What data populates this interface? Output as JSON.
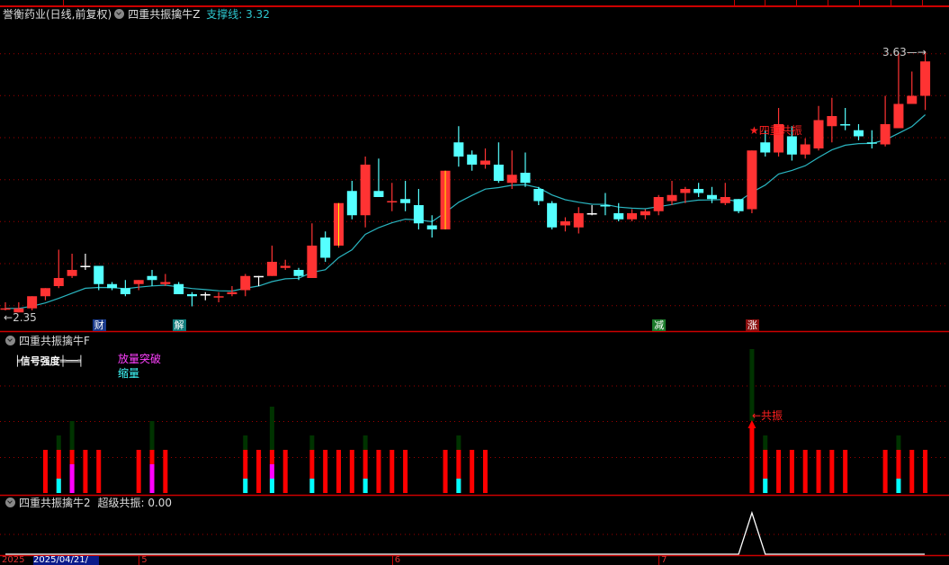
{
  "header": {
    "stock": "誉衡药业(日线,前复权)",
    "indicator": "四重共振擒牛Z",
    "support_label": "支撑线: 3.32"
  },
  "price_labels": {
    "high": "3.63",
    "low": "2.35"
  },
  "signal_text": "★四重共振",
  "badges": [
    {
      "text": "财",
      "candle": 8,
      "bg": "#1a3a8a"
    },
    {
      "text": "解",
      "candle": 14,
      "bg": "#0f7a7a"
    },
    {
      "text": "减",
      "candle": 50,
      "bg": "#1a7a2a"
    },
    {
      "text": "涨",
      "candle": 57,
      "bg": "#8a1010"
    }
  ],
  "colors": {
    "up": "#ff3333",
    "down": "#55ffff",
    "ma": "#2ab5c0",
    "grid": "#a00000",
    "doji": "#ffffff"
  },
  "candles": [
    [
      2.36,
      2.39,
      2.35,
      2.36,
      "r"
    ],
    [
      2.34,
      2.39,
      2.34,
      2.36
    ],
    [
      2.36,
      2.42,
      2.35,
      2.42
    ],
    [
      2.42,
      2.46,
      2.4,
      2.46
    ],
    [
      2.47,
      2.65,
      2.46,
      2.51
    ],
    [
      2.52,
      2.63,
      2.51,
      2.55
    ],
    [
      2.57,
      2.63,
      2.55,
      2.57,
      "w"
    ],
    [
      2.57,
      2.57,
      2.45,
      2.48
    ],
    [
      2.48,
      2.49,
      2.45,
      2.46
    ],
    [
      2.46,
      2.5,
      2.42,
      2.43
    ],
    [
      2.48,
      2.5,
      2.45,
      2.5
    ],
    [
      2.52,
      2.55,
      2.47,
      2.5
    ],
    [
      2.48,
      2.53,
      2.47,
      2.49
    ],
    [
      2.48,
      2.49,
      2.43,
      2.43
    ],
    [
      2.43,
      2.44,
      2.37,
      2.42
    ],
    [
      2.43,
      2.44,
      2.4,
      2.43,
      "w"
    ],
    [
      2.42,
      2.44,
      2.39,
      2.42,
      "r"
    ],
    [
      2.43,
      2.47,
      2.42,
      2.44
    ],
    [
      2.45,
      2.53,
      2.42,
      2.52
    ],
    [
      2.52,
      2.52,
      2.47,
      2.52,
      "w"
    ],
    [
      2.52,
      2.67,
      2.52,
      2.59
    ],
    [
      2.56,
      2.6,
      2.55,
      2.57
    ],
    [
      2.55,
      2.56,
      2.5,
      2.52
    ],
    [
      2.51,
      2.78,
      2.51,
      2.67
    ],
    [
      2.71,
      2.74,
      2.59,
      2.61
    ],
    [
      2.67,
      2.88,
      2.66,
      2.88,
      "y"
    ],
    [
      2.94,
      2.99,
      2.8,
      2.82
    ],
    [
      2.82,
      3.11,
      2.76,
      3.07
    ],
    [
      2.94,
      3.1,
      2.91,
      2.91
    ],
    [
      2.89,
      2.98,
      2.84,
      2.89,
      "r"
    ],
    [
      2.9,
      2.99,
      2.84,
      2.88
    ],
    [
      2.87,
      2.95,
      2.75,
      2.78
    ],
    [
      2.77,
      2.82,
      2.71,
      2.75
    ],
    [
      2.75,
      3.04,
      2.75,
      3.04,
      "y"
    ],
    [
      3.18,
      3.26,
      3.06,
      3.11
    ],
    [
      3.12,
      3.14,
      3.04,
      3.07
    ],
    [
      3.07,
      3.15,
      3.05,
      3.09
    ],
    [
      3.07,
      3.18,
      2.98,
      2.99
    ],
    [
      2.98,
      3.14,
      2.95,
      3.02
    ],
    [
      3.03,
      3.13,
      2.96,
      2.98
    ],
    [
      2.95,
      2.96,
      2.87,
      2.89
    ],
    [
      2.88,
      2.89,
      2.75,
      2.76
    ],
    [
      2.77,
      2.81,
      2.74,
      2.79
    ],
    [
      2.76,
      2.86,
      2.73,
      2.83
    ],
    [
      2.83,
      2.87,
      2.82,
      2.83,
      "w"
    ],
    [
      2.87,
      2.93,
      2.82,
      2.87,
      "c"
    ],
    [
      2.83,
      2.88,
      2.79,
      2.8
    ],
    [
      2.8,
      2.85,
      2.79,
      2.83
    ],
    [
      2.82,
      2.85,
      2.8,
      2.84
    ],
    [
      2.84,
      2.92,
      2.82,
      2.91
    ],
    [
      2.89,
      2.99,
      2.87,
      2.92
    ],
    [
      2.93,
      2.96,
      2.88,
      2.95
    ],
    [
      2.95,
      2.98,
      2.91,
      2.93
    ],
    [
      2.92,
      2.96,
      2.88,
      2.9
    ],
    [
      2.88,
      2.98,
      2.87,
      2.91
    ],
    [
      2.9,
      2.9,
      2.83,
      2.84
    ],
    [
      2.85,
      3.14,
      2.83,
      3.14
    ],
    [
      3.18,
      3.24,
      3.11,
      3.13
    ],
    [
      3.13,
      3.35,
      3.11,
      3.27
    ],
    [
      3.21,
      3.26,
      3.09,
      3.12
    ],
    [
      3.12,
      3.2,
      3.1,
      3.17
    ],
    [
      3.15,
      3.36,
      3.14,
      3.29
    ],
    [
      3.26,
      3.4,
      3.18,
      3.31
    ],
    [
      3.27,
      3.35,
      3.24,
      3.27,
      "c"
    ],
    [
      3.24,
      3.27,
      3.19,
      3.21
    ],
    [
      3.18,
      3.24,
      3.15,
      3.18,
      "c"
    ],
    [
      3.17,
      3.41,
      3.16,
      3.27
    ],
    [
      3.25,
      3.62,
      3.25,
      3.37
    ],
    [
      3.37,
      3.53,
      3.37,
      3.41
    ],
    [
      3.41,
      3.63,
      3.34,
      3.58
    ]
  ],
  "panel_f": {
    "title": "四重共振擒牛F",
    "legend_strength": "╞信号强度╪══╡",
    "legend_breakout": "放量突破",
    "legend_shrink": "缩量",
    "resonance_label": "←共振",
    "bars": [
      [
        4,
        0,
        ""
      ],
      [
        5,
        4,
        "cyan"
      ],
      [
        6,
        5,
        "magenta"
      ],
      [
        7,
        0,
        ""
      ],
      [
        8,
        0,
        ""
      ],
      [
        11,
        0,
        ""
      ],
      [
        12,
        5,
        "magenta"
      ],
      [
        13,
        0,
        ""
      ],
      [
        19,
        4,
        "cyan"
      ],
      [
        20,
        0,
        ""
      ],
      [
        21,
        6,
        "both"
      ],
      [
        22,
        0,
        ""
      ],
      [
        24,
        4,
        "cyan"
      ],
      [
        25,
        0,
        ""
      ],
      [
        26,
        0,
        ""
      ],
      [
        27,
        0,
        ""
      ],
      [
        28,
        4,
        "cyan"
      ],
      [
        29,
        0,
        ""
      ],
      [
        30,
        0,
        ""
      ],
      [
        31,
        0,
        ""
      ],
      [
        34,
        0,
        ""
      ],
      [
        35,
        4,
        "cyan"
      ],
      [
        36,
        0,
        ""
      ],
      [
        37,
        0,
        ""
      ],
      [
        57,
        10,
        "big"
      ],
      [
        58,
        4,
        "cyan"
      ],
      [
        59,
        0,
        ""
      ],
      [
        60,
        0,
        ""
      ],
      [
        61,
        0,
        ""
      ],
      [
        62,
        0,
        ""
      ],
      [
        63,
        0,
        ""
      ],
      [
        64,
        0,
        ""
      ],
      [
        67,
        0,
        ""
      ],
      [
        68,
        4,
        "cyan"
      ],
      [
        69,
        0,
        ""
      ],
      [
        70,
        0,
        ""
      ]
    ]
  },
  "panel_2": {
    "title": "四重共振擒牛2",
    "value_label": "超级共振: 0.00",
    "spike_candle": 57
  },
  "date_axis": {
    "year": "2025",
    "cursor_date": "2025/04/21/",
    "months": [
      {
        "text": "5",
        "candle": 11
      },
      {
        "text": "6",
        "candle": 30
      },
      {
        "text": "7",
        "candle": 50
      }
    ]
  }
}
